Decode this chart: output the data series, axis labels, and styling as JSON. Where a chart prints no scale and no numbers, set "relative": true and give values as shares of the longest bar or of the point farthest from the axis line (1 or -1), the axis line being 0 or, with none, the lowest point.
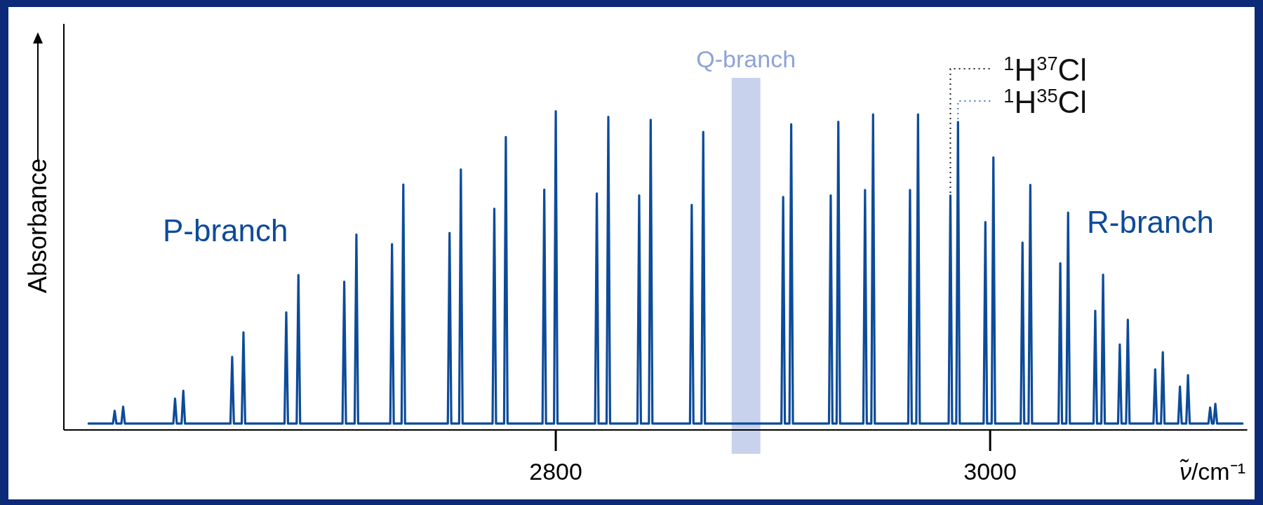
{
  "chart_data": {
    "type": "line",
    "relative": true,
    "xlabel": "ν̃/cm⁻¹",
    "ylabel": "Absorbance",
    "xlim": [
      2573.5,
      3118.4
    ],
    "xticks": [
      2800,
      3000
    ],
    "series": [
      {
        "color": "#0d4b9a",
        "x": [
          2584.9,
          2596.1,
          2596.9,
          2597.7,
          2600.0,
          2600.8,
          2601.6,
          2623.9,
          2624.7,
          2625.5,
          2627.7,
          2628.5,
          2629.3,
          2650.2,
          2651.0,
          2651.8,
          2655.4,
          2656.2,
          2657.0,
          2675.1,
          2675.9,
          2676.7,
          2680.7,
          2681.5,
          2682.3,
          2701.8,
          2702.6,
          2703.4,
          2707.4,
          2708.2,
          2709.0,
          2723.8,
          2724.6,
          2725.4,
          2729.0,
          2729.8,
          2730.6,
          2750.3,
          2751.1,
          2751.9,
          2755.5,
          2756.3,
          2757.1,
          2770.9,
          2771.7,
          2772.5,
          2776.2,
          2777.0,
          2777.8,
          2793.9,
          2794.7,
          2795.5,
          2799.2,
          2800.0,
          2800.8,
          2818.1,
          2818.9,
          2819.7,
          2823.4,
          2824.2,
          2825.0,
          2837.6,
          2838.4,
          2839.2,
          2842.9,
          2843.7,
          2844.5,
          2861.8,
          2862.6,
          2863.4,
          2867.1,
          2867.9,
          2868.7,
          2903.9,
          2904.7,
          2905.5,
          2907.6,
          2908.4,
          2909.2,
          2925.8,
          2926.6,
          2927.4,
          2929.3,
          2930.1,
          2930.9,
          2941.6,
          2942.4,
          2943.2,
          2945.3,
          2946.1,
          2946.9,
          2962.3,
          2963.1,
          2963.9,
          2966.0,
          2966.8,
          2967.6,
          2980.9,
          2981.7,
          2982.5,
          2984.4,
          2985.2,
          2986.0,
          2997.0,
          2997.8,
          2998.6,
          3000.7,
          3001.5,
          3002.3,
          3014.1,
          3014.9,
          3015.7,
          3017.7,
          3018.5,
          3019.3,
          3031.5,
          3032.3,
          3033.1,
          3035.1,
          3035.9,
          3036.7,
          3047.6,
          3048.4,
          3049.2,
          3051.2,
          3052.0,
          3052.8,
          3058.9,
          3059.7,
          3060.5,
          3062.6,
          3063.4,
          3064.2,
          3075.2,
          3076.0,
          3076.8,
          3078.7,
          3079.5,
          3080.3,
          3086.6,
          3087.4,
          3088.2,
          3090.3,
          3091.1,
          3091.9,
          3100.5,
          3101.3,
          3102.1,
          3102.9,
          3103.7,
          3104.5,
          3116.2
        ],
        "values": [
          0.02,
          0.02,
          0.06,
          0.02,
          0.02,
          0.073,
          0.02,
          0.02,
          0.098,
          0.02,
          0.02,
          0.123,
          0.02,
          0.02,
          0.229,
          0.02,
          0.02,
          0.306,
          0.02,
          0.02,
          0.369,
          0.02,
          0.02,
          0.486,
          0.02,
          0.02,
          0.465,
          0.02,
          0.02,
          0.613,
          0.02,
          0.02,
          0.583,
          0.02,
          0.02,
          0.77,
          0.02,
          0.02,
          0.618,
          0.02,
          0.02,
          0.817,
          0.02,
          0.02,
          0.694,
          0.02,
          0.02,
          0.919,
          0.02,
          0.02,
          0.754,
          0.02,
          0.02,
          1.0,
          0.02,
          0.02,
          0.742,
          0.02,
          0.02,
          0.982,
          0.02,
          0.02,
          0.736,
          0.02,
          0.02,
          0.973,
          0.02,
          0.02,
          0.706,
          0.02,
          0.02,
          0.935,
          0.02,
          0.02,
          0.731,
          0.02,
          0.02,
          0.959,
          0.02,
          0.02,
          0.736,
          0.02,
          0.02,
          0.967,
          0.02,
          0.02,
          0.753,
          0.02,
          0.02,
          0.99,
          0.02,
          0.02,
          0.753,
          0.02,
          0.02,
          0.99,
          0.02,
          0.02,
          0.735,
          0.02,
          0.02,
          0.966,
          0.02,
          0.02,
          0.652,
          0.02,
          0.02,
          0.855,
          0.02,
          0.02,
          0.588,
          0.02,
          0.02,
          0.769,
          0.02,
          0.02,
          0.523,
          0.02,
          0.02,
          0.682,
          0.02,
          0.02,
          0.374,
          0.02,
          0.02,
          0.487,
          0.02,
          0.02,
          0.268,
          0.02,
          0.02,
          0.346,
          0.02,
          0.02,
          0.19,
          0.02,
          0.02,
          0.244,
          0.02,
          0.02,
          0.136,
          0.02,
          0.02,
          0.172,
          0.02,
          0.02,
          0.07,
          0.02,
          0.02,
          0.082,
          0.02,
          0.02
        ]
      }
    ],
    "bands": [
      {
        "axis": "x",
        "from": 2881.0,
        "to": 2894.2,
        "label": "Q-branch",
        "color": "#c8d2ec"
      }
    ],
    "annotations": [
      "P-branch",
      "R-branch",
      {
        "text": "$^{1}$H$^{37}$Cl",
        "x": 2981.7,
        "y": 0.735
      },
      {
        "text": "$^{1}$H$^{35}$Cl",
        "x": 2985.2,
        "y": 0.966
      }
    ]
  }
}
